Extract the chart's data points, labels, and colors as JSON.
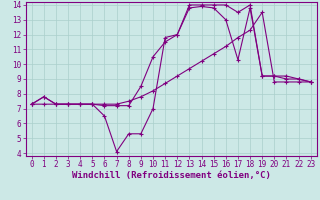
{
  "xlabel": "Windchill (Refroidissement éolien,°C)",
  "bg_color": "#cce8e6",
  "line_color": "#800080",
  "grid_color": "#aacfcc",
  "xlim": [
    -0.5,
    23.5
  ],
  "ylim": [
    3.8,
    14.2
  ],
  "xticks": [
    0,
    1,
    2,
    3,
    4,
    5,
    6,
    7,
    8,
    9,
    10,
    11,
    12,
    13,
    14,
    15,
    16,
    17,
    18,
    19,
    20,
    21,
    22,
    23
  ],
  "yticks": [
    4,
    5,
    6,
    7,
    8,
    9,
    10,
    11,
    12,
    13,
    14
  ],
  "line1_x": [
    0,
    1,
    2,
    3,
    4,
    5,
    6,
    7,
    8,
    9,
    10,
    11,
    12,
    13,
    14,
    15,
    16,
    17,
    18,
    19,
    20,
    21,
    22,
    23
  ],
  "line1_y": [
    7.3,
    7.8,
    7.3,
    7.3,
    7.3,
    7.3,
    6.5,
    4.1,
    5.3,
    5.3,
    7.0,
    11.8,
    12.0,
    13.8,
    13.9,
    13.8,
    13.0,
    10.3,
    13.8,
    9.2,
    9.2,
    9.0,
    9.0,
    8.8
  ],
  "line2_x": [
    0,
    1,
    2,
    3,
    4,
    5,
    6,
    7,
    8,
    9,
    10,
    11,
    12,
    13,
    14,
    15,
    16,
    17,
    18,
    19,
    20,
    21,
    22,
    23
  ],
  "line2_y": [
    7.3,
    7.8,
    7.3,
    7.3,
    7.3,
    7.3,
    7.2,
    7.2,
    7.2,
    8.5,
    10.5,
    11.5,
    12.0,
    14.0,
    14.0,
    14.0,
    14.0,
    13.5,
    14.0,
    9.2,
    9.2,
    9.2,
    9.0,
    8.8
  ],
  "line3_x": [
    0,
    1,
    2,
    3,
    4,
    5,
    6,
    7,
    8,
    9,
    10,
    11,
    12,
    13,
    14,
    15,
    16,
    17,
    18,
    19,
    20,
    21,
    22,
    23
  ],
  "line3_y": [
    7.3,
    7.3,
    7.3,
    7.3,
    7.3,
    7.3,
    7.3,
    7.3,
    7.5,
    7.8,
    8.2,
    8.7,
    9.2,
    9.7,
    10.2,
    10.7,
    11.2,
    11.8,
    12.3,
    13.5,
    8.8,
    8.8,
    8.8,
    8.8
  ],
  "tick_fontsize": 5.5,
  "xlabel_fontsize": 6.5
}
